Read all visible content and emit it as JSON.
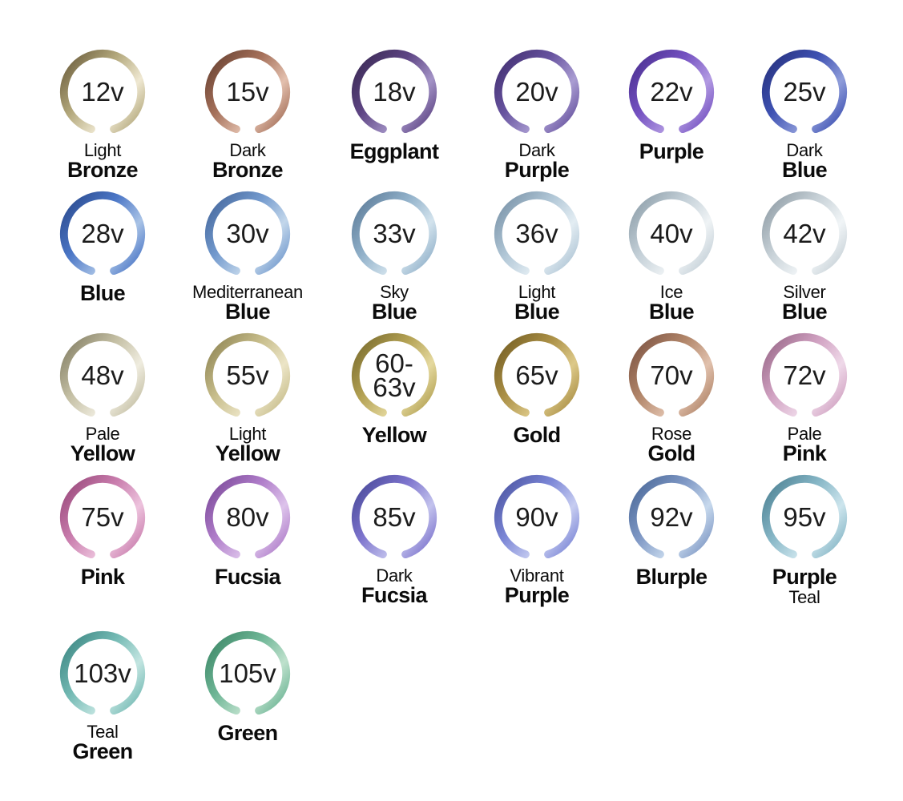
{
  "page": {
    "background": "#ffffff",
    "ink": "#0b0b0b",
    "voltage_ink": "#1c1c1c"
  },
  "items": [
    {
      "voltage": "12v",
      "color_name": "Light Bronze",
      "lines": [
        {
          "text": "Light",
          "bold": false
        },
        {
          "text": "Bronze",
          "bold": true
        }
      ],
      "swatch": {
        "dark": "#6f6140",
        "mid": "#b3a87c",
        "light": "#efe8d2"
      }
    },
    {
      "voltage": "15v",
      "color_name": "Dark Bronze",
      "lines": [
        {
          "text": "Dark",
          "bold": false
        },
        {
          "text": "Bronze",
          "bold": true
        }
      ],
      "swatch": {
        "dark": "#6b4434",
        "mid": "#a5705a",
        "light": "#e3c0ae"
      }
    },
    {
      "voltage": "18v",
      "color_name": "Eggplant",
      "lines": [
        {
          "text": "Eggplant",
          "bold": true
        }
      ],
      "swatch": {
        "dark": "#3c2b56",
        "mid": "#5e4584",
        "light": "#a393c6"
      }
    },
    {
      "voltage": "20v",
      "color_name": "Dark Purple",
      "lines": [
        {
          "text": "Dark",
          "bold": false
        },
        {
          "text": "Purple",
          "bold": true
        }
      ],
      "swatch": {
        "dark": "#443173",
        "mid": "#67539f",
        "light": "#aa9dd2"
      }
    },
    {
      "voltage": "22v",
      "color_name": "Purple",
      "lines": [
        {
          "text": "Purple",
          "bold": true
        }
      ],
      "swatch": {
        "dark": "#4c3192",
        "mid": "#7451c1",
        "light": "#b29ae2"
      }
    },
    {
      "voltage": "25v",
      "color_name": "Dark Blue",
      "lines": [
        {
          "text": "Dark",
          "bold": false
        },
        {
          "text": "Blue",
          "bold": true
        }
      ],
      "swatch": {
        "dark": "#283380",
        "mid": "#3e51b2",
        "light": "#8f9dda"
      }
    },
    {
      "voltage": "28v",
      "color_name": "Blue",
      "lines": [
        {
          "text": "Blue",
          "bold": true
        }
      ],
      "swatch": {
        "dark": "#2c4c90",
        "mid": "#4b76c6",
        "light": "#a9c3e6"
      }
    },
    {
      "voltage": "30v",
      "color_name": "Mediterranean Blue",
      "lines": [
        {
          "text": "Mediterranean",
          "bold": false
        },
        {
          "text": "Blue",
          "bold": true
        }
      ],
      "swatch": {
        "dark": "#47699e",
        "mid": "#7299cd",
        "light": "#c3d7eb"
      }
    },
    {
      "voltage": "33v",
      "color_name": "Sky Blue",
      "lines": [
        {
          "text": "Sky",
          "bold": false
        },
        {
          "text": "Blue",
          "bold": true
        }
      ],
      "swatch": {
        "dark": "#5f7e9b",
        "mid": "#90b0c9",
        "light": "#d3e3ed"
      }
    },
    {
      "voltage": "36v",
      "color_name": "Light Blue",
      "lines": [
        {
          "text": "Light",
          "bold": false
        },
        {
          "text": "Blue",
          "bold": true
        }
      ],
      "swatch": {
        "dark": "#7b94a9",
        "mid": "#afc5d5",
        "light": "#e3edf3"
      }
    },
    {
      "voltage": "40v",
      "color_name": "Ice Blue",
      "lines": [
        {
          "text": "Ice",
          "bold": false
        },
        {
          "text": "Blue",
          "bold": true
        }
      ],
      "swatch": {
        "dark": "#8fa0ab",
        "mid": "#c3cfd7",
        "light": "#eff3f5"
      }
    },
    {
      "voltage": "42v",
      "color_name": "Silver Blue",
      "lines": [
        {
          "text": "Silver",
          "bold": false
        },
        {
          "text": "Blue",
          "bold": true
        }
      ],
      "swatch": {
        "dark": "#919ea7",
        "mid": "#c7d1d7",
        "light": "#f1f5f7"
      }
    },
    {
      "voltage": "48v",
      "color_name": "Pale Yellow",
      "lines": [
        {
          "text": "Pale",
          "bold": false
        },
        {
          "text": "Yellow",
          "bold": true
        }
      ],
      "swatch": {
        "dark": "#878268",
        "mid": "#c4bfa4",
        "light": "#efecdf"
      }
    },
    {
      "voltage": "55v",
      "color_name": "Light Yellow",
      "lines": [
        {
          "text": "Light",
          "bold": false
        },
        {
          "text": "Yellow",
          "bold": true
        }
      ],
      "swatch": {
        "dark": "#918756",
        "mid": "#c7bd8b",
        "light": "#ece5c7"
      }
    },
    {
      "voltage": "60-\n63v",
      "color_name": "Yellow",
      "lines": [
        {
          "text": "Yellow",
          "bold": true
        }
      ],
      "swatch": {
        "dark": "#7c6e30",
        "mid": "#b3a153",
        "light": "#e5d99f"
      }
    },
    {
      "voltage": "65v",
      "color_name": "Gold",
      "lines": [
        {
          "text": "Gold",
          "bold": true
        }
      ],
      "swatch": {
        "dark": "#766025",
        "mid": "#aa8f45",
        "light": "#ddc989"
      }
    },
    {
      "voltage": "70v",
      "color_name": "Rose Gold",
      "lines": [
        {
          "text": "Rose",
          "bold": false
        },
        {
          "text": "Gold",
          "bold": true
        }
      ],
      "swatch": {
        "dark": "#7f5645",
        "mid": "#b18569",
        "light": "#e1c1ad"
      }
    },
    {
      "voltage": "72v",
      "color_name": "Pale Pink",
      "lines": [
        {
          "text": "Pale",
          "bold": false
        },
        {
          "text": "Pink",
          "bold": true
        }
      ],
      "swatch": {
        "dark": "#9b6b8b",
        "mid": "#d0a1c1",
        "light": "#efd9e9"
      }
    },
    {
      "voltage": "75v",
      "color_name": "Pink",
      "lines": [
        {
          "text": "Pink",
          "bold": true
        }
      ],
      "swatch": {
        "dark": "#9b4b7d",
        "mid": "#c97dad",
        "light": "#edc3dd"
      }
    },
    {
      "voltage": "80v",
      "color_name": "Fucsia",
      "lines": [
        {
          "text": "Fucsia",
          "bold": true
        }
      ],
      "swatch": {
        "dark": "#7d4b9b",
        "mid": "#af7dc9",
        "light": "#ddc3eb"
      }
    },
    {
      "voltage": "85v",
      "color_name": "Dark Fucsia",
      "lines": [
        {
          "text": "Dark",
          "bold": false
        },
        {
          "text": "Fucsia",
          "bold": true
        }
      ],
      "swatch": {
        "dark": "#4b4b9b",
        "mid": "#7d74cd",
        "light": "#c3c3ed"
      }
    },
    {
      "voltage": "90v",
      "color_name": "Vibrant Purple",
      "lines": [
        {
          "text": "Vibrant",
          "bold": false
        },
        {
          "text": "Purple",
          "bold": true
        }
      ],
      "swatch": {
        "dark": "#4d56a3",
        "mid": "#7b86d6",
        "light": "#c7cdf1"
      }
    },
    {
      "voltage": "92v",
      "color_name": "Blurple",
      "lines": [
        {
          "text": "Blurple",
          "bold": true
        }
      ],
      "swatch": {
        "dark": "#4d6b9b",
        "mid": "#7e97c4",
        "light": "#c7d9ed"
      }
    },
    {
      "voltage": "95v",
      "color_name": "Purple Teal",
      "lines": [
        {
          "text": "Purple",
          "bold": true
        },
        {
          "text": "Teal",
          "bold": false
        }
      ],
      "swatch": {
        "dark": "#4f8395",
        "mid": "#86b6c6",
        "light": "#cde5ed"
      }
    },
    {
      "voltage": "103v",
      "color_name": "Teal Green",
      "lines": [
        {
          "text": "Teal",
          "bold": false
        },
        {
          "text": "Green",
          "bold": true
        }
      ],
      "swatch": {
        "dark": "#3f8985",
        "mid": "#73b9b3",
        "light": "#c3e5e1"
      }
    },
    {
      "voltage": "105v",
      "color_name": "Green",
      "lines": [
        {
          "text": "Green",
          "bold": true
        }
      ],
      "swatch": {
        "dark": "#3f8969",
        "mid": "#6db595",
        "light": "#bfe1cd"
      }
    }
  ]
}
